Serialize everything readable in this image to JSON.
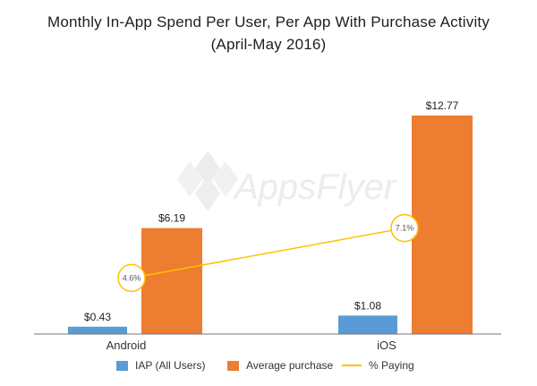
{
  "chart_data": {
    "type": "bar",
    "title": "Monthly In-App Spend Per User, Per App With Purchase Activity",
    "subtitle": "(April-May 2016)",
    "categories": [
      "Android",
      "iOS"
    ],
    "series": [
      {
        "name": "IAP (All Users)",
        "type": "bar",
        "values": [
          0.43,
          1.08
        ],
        "labels": [
          "$0.43",
          "$1.08"
        ],
        "color": "#5b9bd5"
      },
      {
        "name": "Average purchase",
        "type": "bar",
        "values": [
          6.19,
          12.77
        ],
        "labels": [
          "$6.19",
          "$12.77"
        ],
        "color": "#ed7d31"
      },
      {
        "name": "% Paying",
        "type": "line",
        "values": [
          4.6,
          7.1
        ],
        "labels": [
          "4.6%",
          "7.1%"
        ],
        "color": "#ffc000"
      }
    ],
    "ylim": [
      0,
      13.5
    ],
    "grid": false,
    "legend_position": "bottom"
  },
  "watermark": {
    "text": "AppsFlyer"
  }
}
